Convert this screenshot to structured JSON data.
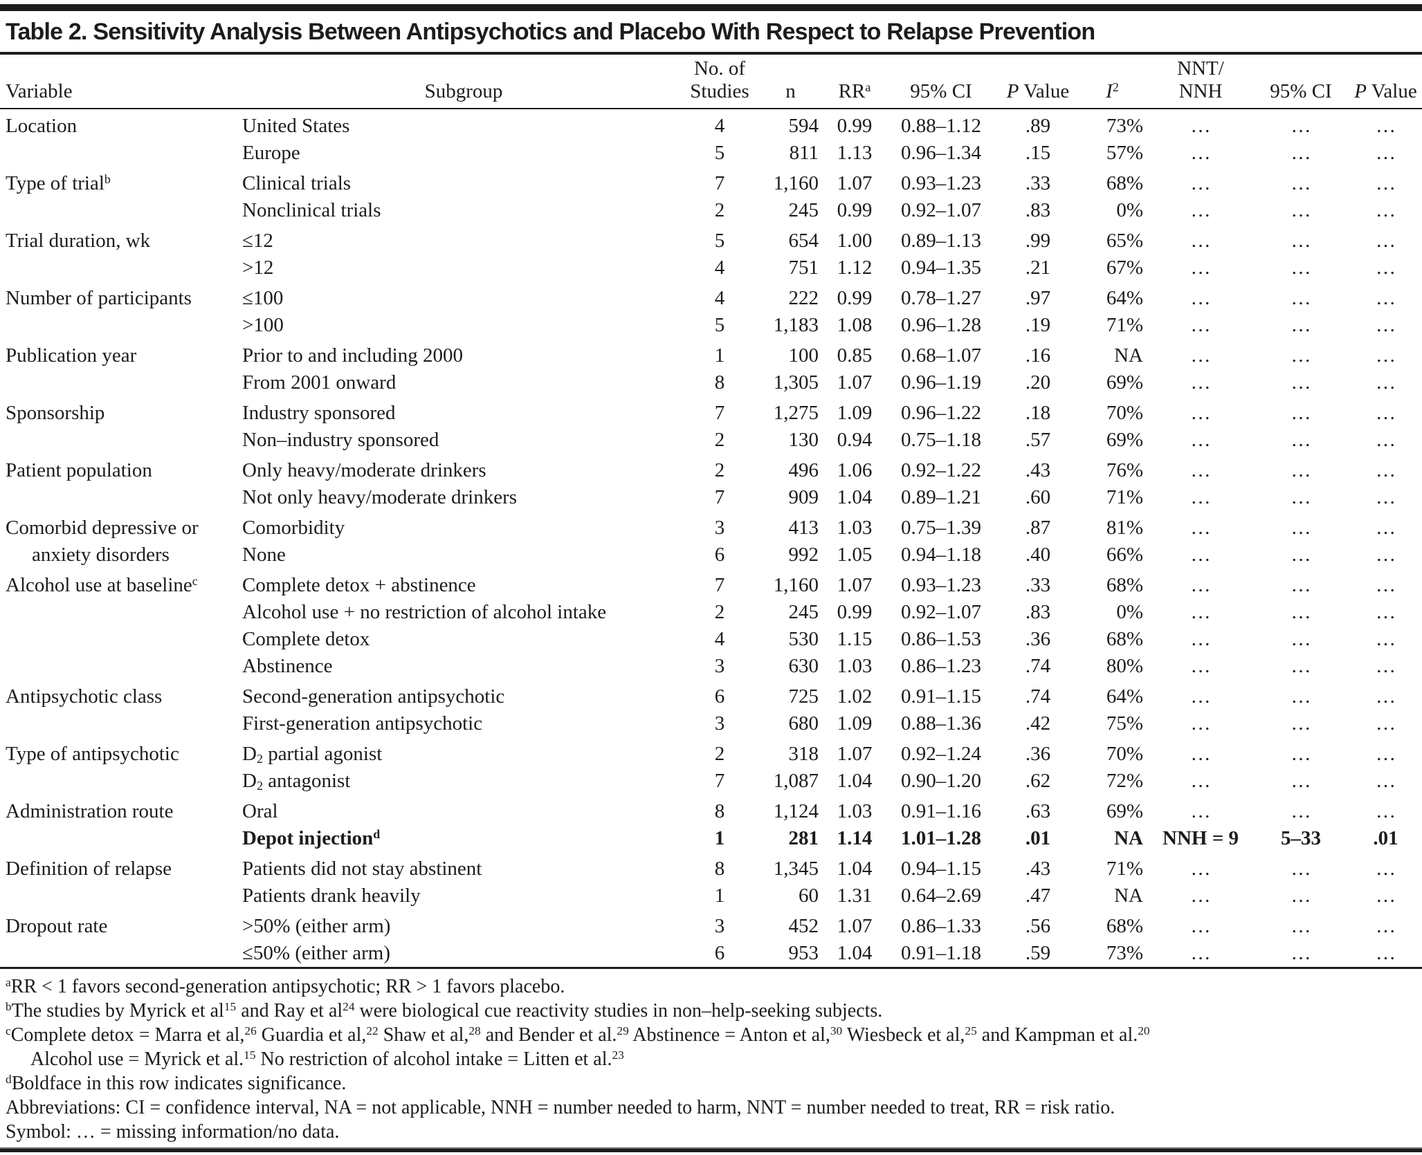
{
  "title": "Table 2. Sensitivity Analysis Between Antipsychotics and Placebo With Respect to Relapse Prevention",
  "columns": [
    {
      "id": "variable",
      "align": "left",
      "top_label": null,
      "label": [
        {
          "t": "Variable"
        }
      ]
    },
    {
      "id": "subgroup",
      "align": "center",
      "top_label": null,
      "label": [
        {
          "t": "Subgroup"
        }
      ]
    },
    {
      "id": "no-of-studies",
      "align": "center",
      "top_label": [
        {
          "t": "No. of"
        }
      ],
      "label": [
        {
          "t": "Studies"
        }
      ]
    },
    {
      "id": "n",
      "align": "center",
      "top_label": null,
      "label": [
        {
          "t": "n"
        }
      ]
    },
    {
      "id": "rr",
      "align": "center",
      "top_label": null,
      "label": [
        {
          "t": "RR"
        },
        {
          "sup": "a"
        }
      ]
    },
    {
      "id": "ci95",
      "align": "center",
      "top_label": null,
      "label": [
        {
          "t": "95% CI"
        }
      ]
    },
    {
      "id": "p-value",
      "align": "center",
      "top_label": null,
      "label": [
        {
          "i": "P"
        },
        {
          "t": " Value"
        }
      ]
    },
    {
      "id": "i2",
      "align": "center",
      "top_label": null,
      "label": [
        {
          "i": "I"
        },
        {
          "sup": "2"
        }
      ]
    },
    {
      "id": "nnt-nnh",
      "align": "center",
      "top_label": [
        {
          "t": "NNT/"
        }
      ],
      "label": [
        {
          "t": "NNH"
        }
      ]
    },
    {
      "id": "ci95-2",
      "align": "center",
      "top_label": null,
      "label": [
        {
          "t": "95% CI"
        }
      ]
    },
    {
      "id": "p-value-2",
      "align": "center",
      "top_label": null,
      "label": [
        {
          "i": "P"
        },
        {
          "t": " Value"
        }
      ]
    }
  ],
  "rows": [
    {
      "group_start": true,
      "bold": false,
      "variable": [
        {
          "t": "Location"
        }
      ],
      "variable_indent": false,
      "subgroup": [
        {
          "t": "United States"
        }
      ],
      "values": [
        "4",
        "594",
        "0.99",
        "0.88–1.12",
        ".89",
        "73%",
        "…",
        "…",
        "…"
      ]
    },
    {
      "group_start": false,
      "bold": false,
      "variable": null,
      "variable_indent": false,
      "subgroup": [
        {
          "t": "Europe"
        }
      ],
      "values": [
        "5",
        "811",
        "1.13",
        "0.96–1.34",
        ".15",
        "57%",
        "…",
        "…",
        "…"
      ]
    },
    {
      "group_start": true,
      "bold": false,
      "variable": [
        {
          "t": "Type of trial"
        },
        {
          "sup": "b"
        }
      ],
      "variable_indent": false,
      "subgroup": [
        {
          "t": "Clinical trials"
        }
      ],
      "values": [
        "7",
        "1,160",
        "1.07",
        "0.93–1.23",
        ".33",
        "68%",
        "…",
        "…",
        "…"
      ]
    },
    {
      "group_start": false,
      "bold": false,
      "variable": null,
      "variable_indent": false,
      "subgroup": [
        {
          "t": "Nonclinical trials"
        }
      ],
      "values": [
        "2",
        "245",
        "0.99",
        "0.92–1.07",
        ".83",
        "0%",
        "…",
        "…",
        "…"
      ]
    },
    {
      "group_start": true,
      "bold": false,
      "variable": [
        {
          "t": "Trial duration, wk"
        }
      ],
      "variable_indent": false,
      "subgroup": [
        {
          "t": "≤12"
        }
      ],
      "values": [
        "5",
        "654",
        "1.00",
        "0.89–1.13",
        ".99",
        "65%",
        "…",
        "…",
        "…"
      ]
    },
    {
      "group_start": false,
      "bold": false,
      "variable": null,
      "variable_indent": false,
      "subgroup": [
        {
          "t": ">12"
        }
      ],
      "values": [
        "4",
        "751",
        "1.12",
        "0.94–1.35",
        ".21",
        "67%",
        "…",
        "…",
        "…"
      ]
    },
    {
      "group_start": true,
      "bold": false,
      "variable": [
        {
          "t": "Number of participants"
        }
      ],
      "variable_indent": false,
      "subgroup": [
        {
          "t": "≤100"
        }
      ],
      "values": [
        "4",
        "222",
        "0.99",
        "0.78–1.27",
        ".97",
        "64%",
        "…",
        "…",
        "…"
      ]
    },
    {
      "group_start": false,
      "bold": false,
      "variable": null,
      "variable_indent": false,
      "subgroup": [
        {
          "t": ">100"
        }
      ],
      "values": [
        "5",
        "1,183",
        "1.08",
        "0.96–1.28",
        ".19",
        "71%",
        "…",
        "…",
        "…"
      ]
    },
    {
      "group_start": true,
      "bold": false,
      "variable": [
        {
          "t": "Publication year"
        }
      ],
      "variable_indent": false,
      "subgroup": [
        {
          "t": "Prior to and including 2000"
        }
      ],
      "values": [
        "1",
        "100",
        "0.85",
        "0.68–1.07",
        ".16",
        "NA",
        "…",
        "…",
        "…"
      ]
    },
    {
      "group_start": false,
      "bold": false,
      "variable": null,
      "variable_indent": false,
      "subgroup": [
        {
          "t": "From 2001 onward"
        }
      ],
      "values": [
        "8",
        "1,305",
        "1.07",
        "0.96–1.19",
        ".20",
        "69%",
        "…",
        "…",
        "…"
      ]
    },
    {
      "group_start": true,
      "bold": false,
      "variable": [
        {
          "t": "Sponsorship"
        }
      ],
      "variable_indent": false,
      "subgroup": [
        {
          "t": "Industry sponsored"
        }
      ],
      "values": [
        "7",
        "1,275",
        "1.09",
        "0.96–1.22",
        ".18",
        "70%",
        "…",
        "…",
        "…"
      ]
    },
    {
      "group_start": false,
      "bold": false,
      "variable": null,
      "variable_indent": false,
      "subgroup": [
        {
          "t": "Non–industry sponsored"
        }
      ],
      "values": [
        "2",
        "130",
        "0.94",
        "0.75–1.18",
        ".57",
        "69%",
        "…",
        "…",
        "…"
      ]
    },
    {
      "group_start": true,
      "bold": false,
      "variable": [
        {
          "t": "Patient population"
        }
      ],
      "variable_indent": false,
      "subgroup": [
        {
          "t": "Only heavy/moderate drinkers"
        }
      ],
      "values": [
        "2",
        "496",
        "1.06",
        "0.92–1.22",
        ".43",
        "76%",
        "…",
        "…",
        "…"
      ]
    },
    {
      "group_start": false,
      "bold": false,
      "variable": null,
      "variable_indent": false,
      "subgroup": [
        {
          "t": "Not only heavy/moderate drinkers"
        }
      ],
      "values": [
        "7",
        "909",
        "1.04",
        "0.89–1.21",
        ".60",
        "71%",
        "…",
        "…",
        "…"
      ]
    },
    {
      "group_start": true,
      "bold": false,
      "variable": [
        {
          "t": "Comorbid depressive or"
        }
      ],
      "variable_indent": false,
      "subgroup": [
        {
          "t": "Comorbidity"
        }
      ],
      "values": [
        "3",
        "413",
        "1.03",
        "0.75–1.39",
        ".87",
        "81%",
        "…",
        "…",
        "…"
      ]
    },
    {
      "group_start": false,
      "bold": false,
      "variable": [
        {
          "t": "anxiety disorders"
        }
      ],
      "variable_indent": true,
      "subgroup": [
        {
          "t": "None"
        }
      ],
      "values": [
        "6",
        "992",
        "1.05",
        "0.94–1.18",
        ".40",
        "66%",
        "…",
        "…",
        "…"
      ]
    },
    {
      "group_start": true,
      "bold": false,
      "variable": [
        {
          "t": "Alcohol use at baseline"
        },
        {
          "sup": "c"
        }
      ],
      "variable_indent": false,
      "subgroup": [
        {
          "t": "Complete detox + abstinence"
        }
      ],
      "values": [
        "7",
        "1,160",
        "1.07",
        "0.93–1.23",
        ".33",
        "68%",
        "…",
        "…",
        "…"
      ]
    },
    {
      "group_start": false,
      "bold": false,
      "variable": null,
      "variable_indent": false,
      "subgroup": [
        {
          "t": "Alcohol use + no restriction of alcohol intake"
        }
      ],
      "values": [
        "2",
        "245",
        "0.99",
        "0.92–1.07",
        ".83",
        "0%",
        "…",
        "…",
        "…"
      ]
    },
    {
      "group_start": false,
      "bold": false,
      "variable": null,
      "variable_indent": false,
      "subgroup": [
        {
          "t": "Complete detox"
        }
      ],
      "values": [
        "4",
        "530",
        "1.15",
        "0.86–1.53",
        ".36",
        "68%",
        "…",
        "…",
        "…"
      ]
    },
    {
      "group_start": false,
      "bold": false,
      "variable": null,
      "variable_indent": false,
      "subgroup": [
        {
          "t": "Abstinence"
        }
      ],
      "values": [
        "3",
        "630",
        "1.03",
        "0.86–1.23",
        ".74",
        "80%",
        "…",
        "…",
        "…"
      ]
    },
    {
      "group_start": true,
      "bold": false,
      "variable": [
        {
          "t": "Antipsychotic class"
        }
      ],
      "variable_indent": false,
      "subgroup": [
        {
          "t": "Second-generation antipsychotic"
        }
      ],
      "values": [
        "6",
        "725",
        "1.02",
        "0.91–1.15",
        ".74",
        "64%",
        "…",
        "…",
        "…"
      ]
    },
    {
      "group_start": false,
      "bold": false,
      "variable": null,
      "variable_indent": false,
      "subgroup": [
        {
          "t": "First-generation antipsychotic"
        }
      ],
      "values": [
        "3",
        "680",
        "1.09",
        "0.88–1.36",
        ".42",
        "75%",
        "…",
        "…",
        "…"
      ]
    },
    {
      "group_start": true,
      "bold": false,
      "variable": [
        {
          "t": "Type of antipsychotic"
        }
      ],
      "variable_indent": false,
      "subgroup": [
        {
          "t": "D"
        },
        {
          "sub": "2"
        },
        {
          "t": " partial agonist"
        }
      ],
      "values": [
        "2",
        "318",
        "1.07",
        "0.92–1.24",
        ".36",
        "70%",
        "…",
        "…",
        "…"
      ]
    },
    {
      "group_start": false,
      "bold": false,
      "variable": null,
      "variable_indent": false,
      "subgroup": [
        {
          "t": "D"
        },
        {
          "sub": "2"
        },
        {
          "t": " antagonist"
        }
      ],
      "values": [
        "7",
        "1,087",
        "1.04",
        "0.90–1.20",
        ".62",
        "72%",
        "…",
        "…",
        "…"
      ]
    },
    {
      "group_start": true,
      "bold": false,
      "variable": [
        {
          "t": "Administration route"
        }
      ],
      "variable_indent": false,
      "subgroup": [
        {
          "t": "Oral"
        }
      ],
      "values": [
        "8",
        "1,124",
        "1.03",
        "0.91–1.16",
        ".63",
        "69%",
        "…",
        "…",
        "…"
      ]
    },
    {
      "group_start": false,
      "bold": true,
      "variable": null,
      "variable_indent": false,
      "subgroup": [
        {
          "t": "Depot injection"
        },
        {
          "sup": "d"
        }
      ],
      "values": [
        "1",
        "281",
        "1.14",
        "1.01–1.28",
        ".01",
        "NA",
        "NNH = 9",
        "5–33",
        ".01"
      ]
    },
    {
      "group_start": true,
      "bold": false,
      "variable": [
        {
          "t": "Definition of relapse"
        }
      ],
      "variable_indent": false,
      "subgroup": [
        {
          "t": "Patients did not stay abstinent"
        }
      ],
      "values": [
        "8",
        "1,345",
        "1.04",
        "0.94–1.15",
        ".43",
        "71%",
        "…",
        "…",
        "…"
      ]
    },
    {
      "group_start": false,
      "bold": false,
      "variable": null,
      "variable_indent": false,
      "subgroup": [
        {
          "t": "Patients drank heavily"
        }
      ],
      "values": [
        "1",
        "60",
        "1.31",
        "0.64–2.69",
        ".47",
        "NA",
        "…",
        "…",
        "…"
      ]
    },
    {
      "group_start": true,
      "bold": false,
      "variable": [
        {
          "t": "Dropout rate"
        }
      ],
      "variable_indent": false,
      "subgroup": [
        {
          "t": ">50% (either arm)"
        }
      ],
      "values": [
        "3",
        "452",
        "1.07",
        "0.86–1.33",
        ".56",
        "68%",
        "…",
        "…",
        "…"
      ]
    },
    {
      "group_start": false,
      "bold": false,
      "variable": null,
      "variable_indent": false,
      "subgroup": [
        {
          "t": "≤50% (either arm)"
        }
      ],
      "values": [
        "6",
        "953",
        "1.04",
        "0.91–1.18",
        ".59",
        "73%",
        "…",
        "…",
        "…"
      ]
    }
  ],
  "footnotes": [
    {
      "id": "a",
      "indent": false,
      "segments": [
        {
          "sup": "a"
        },
        {
          "t": "RR < 1 favors second-generation antipsychotic; RR > 1 favors placebo."
        }
      ]
    },
    {
      "id": "b",
      "indent": false,
      "segments": [
        {
          "sup": "b"
        },
        {
          "t": "The studies by Myrick et al"
        },
        {
          "sup": "15"
        },
        {
          "t": " and Ray et al"
        },
        {
          "sup": "24"
        },
        {
          "t": " were biological cue reactivity studies in non–help-seeking subjects."
        }
      ]
    },
    {
      "id": "c",
      "indent": false,
      "segments": [
        {
          "sup": "c"
        },
        {
          "t": "Complete detox = Marra et al,"
        },
        {
          "sup": "26"
        },
        {
          "t": " Guardia et al,"
        },
        {
          "sup": "22"
        },
        {
          "t": " Shaw et al,"
        },
        {
          "sup": "28"
        },
        {
          "t": " and Bender et al."
        },
        {
          "sup": "29"
        },
        {
          "t": " Abstinence = Anton et al,"
        },
        {
          "sup": "30"
        },
        {
          "t": " Wiesbeck et al,"
        },
        {
          "sup": "25"
        },
        {
          "t": " and Kampman et al."
        },
        {
          "sup": "20"
        }
      ]
    },
    {
      "id": "c-continued",
      "indent": true,
      "segments": [
        {
          "t": "Alcohol use = Myrick et al."
        },
        {
          "sup": "15"
        },
        {
          "t": " No restriction of alcohol intake = Litten et al."
        },
        {
          "sup": "23"
        }
      ]
    },
    {
      "id": "d",
      "indent": false,
      "segments": [
        {
          "sup": "d"
        },
        {
          "t": "Boldface in this row indicates significance."
        }
      ]
    },
    {
      "id": "abbreviations",
      "indent": false,
      "segments": [
        {
          "t": "Abbreviations: CI = confidence interval, NA = not applicable, NNH = number needed to harm, NNT = number needed to treat, RR = risk ratio."
        }
      ]
    },
    {
      "id": "symbol",
      "indent": false,
      "segments": [
        {
          "t": "Symbol: … = missing information/no data."
        }
      ]
    }
  ],
  "colors": {
    "text": "#1c1c1c",
    "rule": "#1c1c1c",
    "background": "#ffffff"
  }
}
